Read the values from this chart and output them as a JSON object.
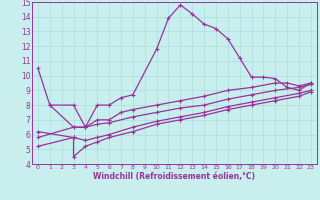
{
  "xlabel": "Windchill (Refroidissement éolien,°C)",
  "background_color": "#c8eeee",
  "line_color": "#993399",
  "xlim": [
    -0.5,
    23.5
  ],
  "ylim": [
    4,
    15
  ],
  "xticks": [
    0,
    1,
    2,
    3,
    4,
    5,
    6,
    7,
    8,
    9,
    10,
    11,
    12,
    13,
    14,
    15,
    16,
    17,
    18,
    19,
    20,
    21,
    22,
    23
  ],
  "yticks": [
    4,
    5,
    6,
    7,
    8,
    9,
    10,
    11,
    12,
    13,
    14,
    15
  ],
  "grid_color": "#aadddd",
  "curve1_x": [
    0,
    1,
    3,
    4,
    5,
    6,
    7,
    8,
    10,
    11,
    12,
    13,
    14,
    15,
    16,
    17,
    18,
    19,
    20,
    21,
    22,
    23
  ],
  "curve1_y": [
    10.5,
    8.0,
    8.0,
    6.5,
    8.0,
    8.0,
    8.5,
    8.7,
    11.8,
    13.9,
    14.8,
    14.2,
    13.5,
    13.2,
    12.5,
    11.2,
    9.9,
    9.9,
    9.8,
    9.2,
    9.0,
    9.5
  ],
  "curve2_x": [
    1,
    3,
    4,
    5,
    6,
    7,
    8,
    10,
    12,
    14,
    16,
    18,
    20,
    21,
    22,
    23
  ],
  "curve2_y": [
    8.0,
    6.5,
    6.5,
    7.0,
    7.0,
    7.5,
    7.7,
    8.0,
    8.3,
    8.6,
    9.0,
    9.2,
    9.5,
    9.5,
    9.3,
    9.5
  ],
  "curve3_x": [
    0,
    3,
    4,
    5,
    6,
    8,
    10,
    12,
    14,
    16,
    18,
    20,
    22,
    23
  ],
  "curve3_y": [
    5.8,
    6.5,
    6.5,
    6.7,
    6.8,
    7.2,
    7.5,
    7.8,
    8.0,
    8.4,
    8.7,
    9.0,
    9.2,
    9.4
  ],
  "curve4_x": [
    0,
    3,
    4,
    5,
    6,
    8,
    10,
    12,
    14,
    16,
    18,
    20,
    22,
    23
  ],
  "curve4_y": [
    5.2,
    5.8,
    5.6,
    5.8,
    6.0,
    6.5,
    6.9,
    7.2,
    7.5,
    7.9,
    8.2,
    8.5,
    8.8,
    9.0
  ],
  "curve5_x": [
    0,
    3,
    3,
    4,
    5,
    6,
    8,
    10,
    12,
    14,
    16,
    18,
    20,
    22,
    23
  ],
  "curve5_y": [
    6.2,
    5.8,
    4.5,
    5.2,
    5.5,
    5.8,
    6.2,
    6.7,
    7.0,
    7.3,
    7.7,
    8.0,
    8.3,
    8.6,
    8.9
  ]
}
